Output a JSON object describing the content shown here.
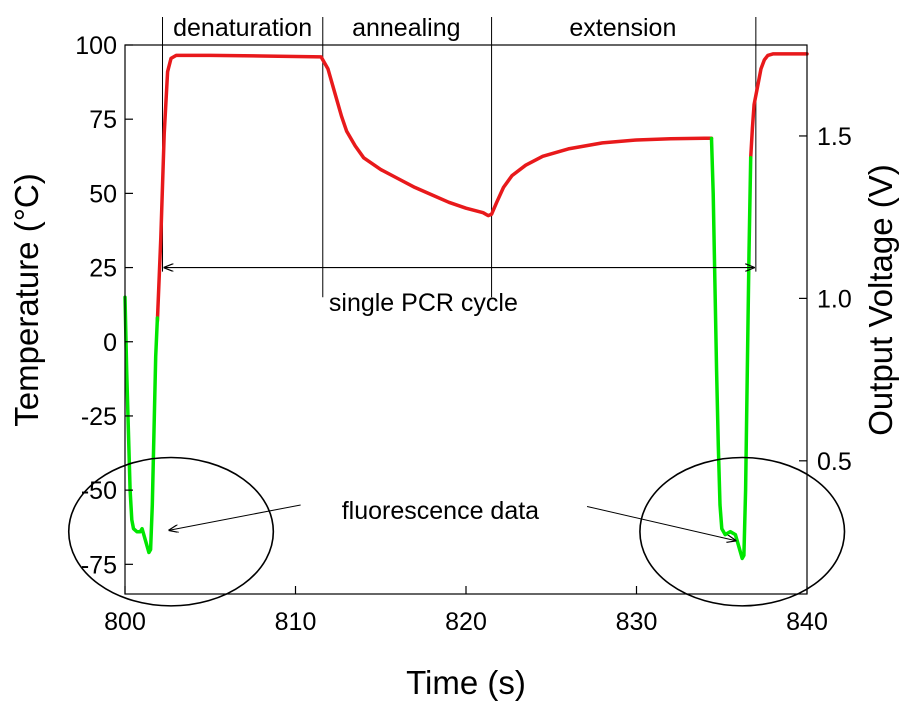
{
  "chart_data": {
    "type": "line",
    "xlabel": "Time (s)",
    "ylabel_left": "Temperature (°C)",
    "ylabel_right": "Output Voltage (V)",
    "xlim": [
      800,
      840
    ],
    "ylim_left": [
      -85,
      100
    ],
    "ylim_right": [
      0.09,
      1.78
    ],
    "x_ticks": [
      800,
      810,
      820,
      830,
      840
    ],
    "y_ticks_left": [
      100,
      75,
      50,
      25,
      0,
      -25,
      -50,
      -75
    ],
    "y_ticks_right": [
      1.5,
      1.0,
      0.5
    ],
    "grid": false,
    "series": [
      {
        "axis": "left",
        "color": "#e8191b",
        "x": [
          801.9,
          802.1,
          802.3,
          802.5,
          802.7,
          803.0,
          805.0,
          808.0,
          811.5,
          811.9,
          812.3,
          812.7,
          813.0,
          813.5,
          814.0,
          815.0,
          816.0,
          817.0,
          818.0,
          819.0,
          820.0,
          821.0,
          821.3,
          821.5,
          821.8,
          822.2,
          822.7,
          823.5,
          824.5,
          826.0,
          828.0,
          830.0,
          832.0,
          834.0,
          834.4
        ],
        "y": [
          7,
          35,
          70,
          91,
          95.5,
          96.5,
          96.5,
          96.3,
          96,
          92,
          84,
          76,
          71,
          66,
          62,
          58,
          55,
          52,
          49.5,
          47,
          45,
          43.5,
          42.5,
          43,
          47,
          52,
          56,
          59.5,
          62.5,
          65,
          67,
          68,
          68.4,
          68.6,
          68.6
        ]
      },
      {
        "axis": "left",
        "color": "#e8191b",
        "x": [
          836.7,
          836.8,
          836.9,
          837.1,
          837.3,
          837.5,
          837.7,
          838.0,
          839.0,
          840.0
        ],
        "y": [
          62,
          72,
          80,
          86,
          92,
          95,
          96.5,
          97,
          97,
          97
        ]
      },
      {
        "axis": "left",
        "color": "#00e600",
        "x": [
          800.0,
          800.1,
          800.2,
          800.3,
          800.4,
          800.5,
          800.7,
          800.9,
          801.0,
          801.2,
          801.4,
          801.5,
          801.6,
          801.7,
          801.8,
          801.9
        ],
        "y": [
          15,
          -10,
          -30,
          -50,
          -60,
          -63,
          -64,
          -64,
          -63,
          -67,
          -71,
          -70,
          -55,
          -30,
          -5,
          8
        ]
      },
      {
        "axis": "left",
        "color": "#00e600",
        "x": [
          834.4,
          834.5,
          834.6,
          834.7,
          834.8,
          834.9,
          835.0,
          835.2,
          835.5,
          835.8,
          836.0,
          836.2,
          836.3,
          836.4,
          836.5,
          836.6,
          836.7
        ],
        "y": [
          68.5,
          50,
          20,
          -10,
          -35,
          -55,
          -63,
          -65,
          -64,
          -65,
          -69,
          -73,
          -72,
          -50,
          -10,
          30,
          62
        ]
      }
    ],
    "phase_lines_x": [
      802.2,
      811.6,
      821.5,
      837.0
    ],
    "annotations": [
      {
        "text": "denaturation",
        "x": 806.9,
        "y": 100
      },
      {
        "text": "annealing",
        "x": 816.5,
        "y": 100
      },
      {
        "text": "extension",
        "x": 829.2,
        "y": 100
      },
      {
        "text": "single PCR cycle",
        "x": 817.5,
        "y": 13
      },
      {
        "text": "fluorescence data",
        "x": 818.5,
        "y": -57
      }
    ],
    "cycle_arrow": {
      "x_start": 802.2,
      "x_end": 837.0,
      "y": 25
    },
    "fluorescence_circles": [
      {
        "cx": 802.7,
        "cy": -64,
        "rx": 6.0,
        "ry": 25
      },
      {
        "cx": 836.2,
        "cy": -64,
        "rx": 6.0,
        "ry": 25
      }
    ],
    "fluorescence_arrows": [
      {
        "from": [
          810.3,
          -55
        ],
        "to": [
          802.6,
          -63.5
        ]
      },
      {
        "from": [
          827.1,
          -55.5
        ],
        "to": [
          835.8,
          -67
        ]
      }
    ]
  }
}
